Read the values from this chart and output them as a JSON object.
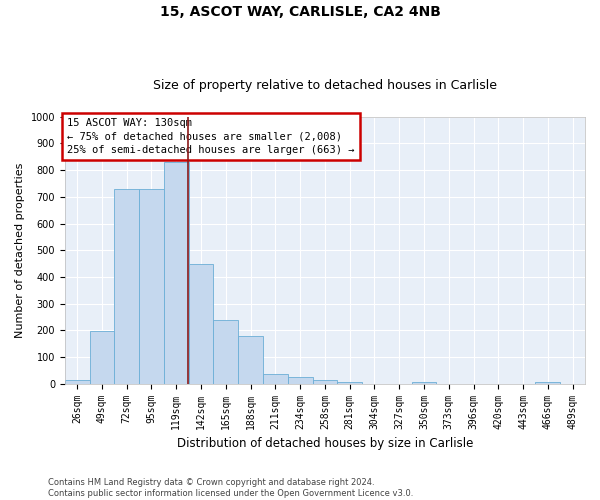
{
  "title": "15, ASCOT WAY, CARLISLE, CA2 4NB",
  "subtitle": "Size of property relative to detached houses in Carlisle",
  "xlabel": "Distribution of detached houses by size in Carlisle",
  "ylabel": "Number of detached properties",
  "categories": [
    "26sqm",
    "49sqm",
    "72sqm",
    "95sqm",
    "119sqm",
    "142sqm",
    "165sqm",
    "188sqm",
    "211sqm",
    "234sqm",
    "258sqm",
    "281sqm",
    "304sqm",
    "327sqm",
    "350sqm",
    "373sqm",
    "396sqm",
    "420sqm",
    "443sqm",
    "466sqm",
    "489sqm"
  ],
  "values": [
    13,
    197,
    730,
    730,
    830,
    448,
    240,
    178,
    35,
    25,
    15,
    8,
    0,
    0,
    8,
    0,
    0,
    0,
    0,
    8,
    0
  ],
  "bar_color": "#c5d8ee",
  "bar_edge_color": "#6baed6",
  "bar_width": 1.0,
  "vline_color": "#8b1a1a",
  "annotation_box_text": "15 ASCOT WAY: 130sqm\n← 75% of detached houses are smaller (2,008)\n25% of semi-detached houses are larger (663) →",
  "box_edge_color": "#cc0000",
  "ylim": [
    0,
    1000
  ],
  "yticks": [
    0,
    100,
    200,
    300,
    400,
    500,
    600,
    700,
    800,
    900,
    1000
  ],
  "bg_color": "#e8eff8",
  "grid_color": "#ffffff",
  "footnote": "Contains HM Land Registry data © Crown copyright and database right 2024.\nContains public sector information licensed under the Open Government Licence v3.0.",
  "title_fontsize": 10,
  "subtitle_fontsize": 9,
  "annotation_fontsize": 7.5,
  "xlabel_fontsize": 8.5,
  "ylabel_fontsize": 8,
  "tick_fontsize": 7,
  "footnote_fontsize": 6
}
